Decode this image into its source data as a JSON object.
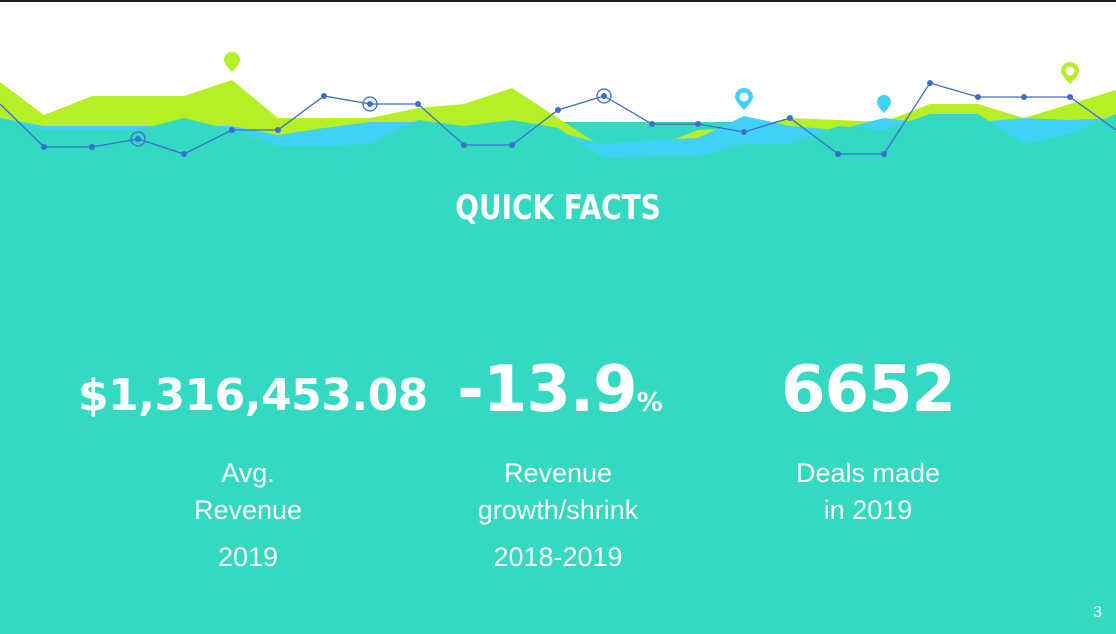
{
  "slide": {
    "title": "QUICK FACTS",
    "page_number": "3",
    "colors": {
      "background": "#33d9c1",
      "lime": "#b6ef25",
      "sky": "#3fd2f5",
      "line": "#3a6fd0",
      "text": "#ffffff"
    }
  },
  "facts": [
    {
      "value": "$1,316,453.08",
      "unit": "",
      "label_line1": "Avg.",
      "label_line2": "Revenue",
      "year": "2019"
    },
    {
      "value": "-13.9",
      "unit": "%",
      "label_line1": "Revenue",
      "label_line2": "growth/shrink",
      "year": "2018-2019"
    },
    {
      "value": "6652",
      "unit": "",
      "label_line1": "Deals made",
      "label_line2": "in 2019",
      "year": ""
    }
  ],
  "decoration": {
    "icons": [
      "map-pin-icon",
      "map-pin-icon",
      "map-pin-icon",
      "map-pin-icon"
    ]
  }
}
